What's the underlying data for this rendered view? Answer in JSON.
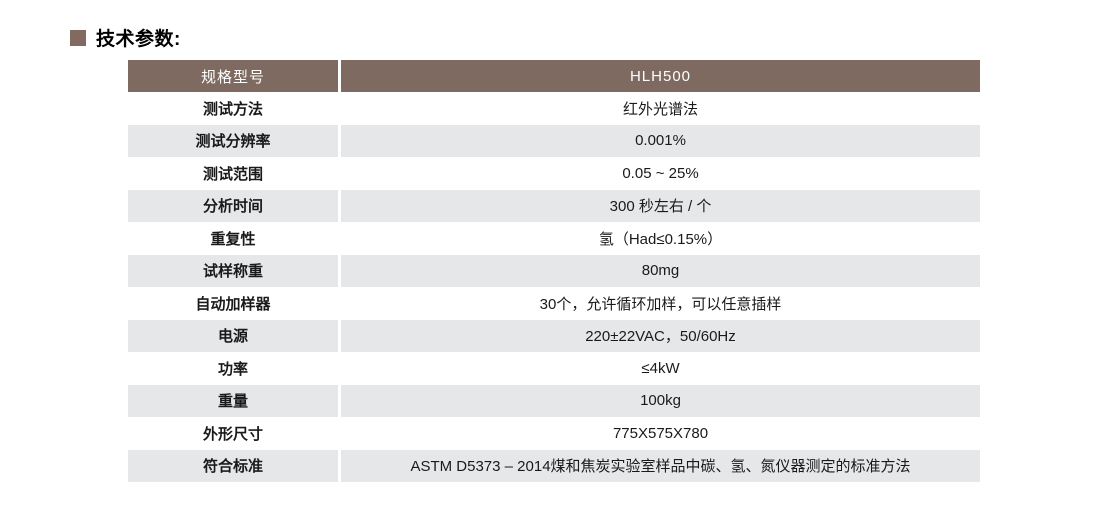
{
  "page": {
    "title": "技术参数:"
  },
  "table": {
    "header": {
      "label": "规格型号",
      "value": "HLH500"
    },
    "rows": [
      {
        "label": "测试方法",
        "value": "红外光谱法"
      },
      {
        "label": "测试分辨率",
        "value": "0.001%"
      },
      {
        "label": "测试范围",
        "value": "0.05 ~ 25%"
      },
      {
        "label": "分析时间",
        "value": "300 秒左右 / 个"
      },
      {
        "label": "重复性",
        "value": "氢（Had≤0.15%）"
      },
      {
        "label": "试样称重",
        "value": "80mg"
      },
      {
        "label": "自动加样器",
        "value": "30个，允许循环加样，可以任意插样"
      },
      {
        "label": "电源",
        "value": "220±22VAC，50/60Hz"
      },
      {
        "label": "功率",
        "value": "≤4kW"
      },
      {
        "label": "重量",
        "value": "100kg"
      },
      {
        "label": "外形尺寸",
        "value": "775X575X780"
      },
      {
        "label": "符合标准",
        "value": "ASTM D5373 – 2014煤和焦炭实验室样品中碳、氢、氮仪器测定的标准方法"
      }
    ],
    "colors": {
      "accent": "#826a60",
      "header_bg": "#7f6a62",
      "header_text": "#ffffff",
      "row_bg": "#ffffff",
      "row_alt_bg": "#e6e7e8",
      "text": "#1a1a1a"
    }
  }
}
